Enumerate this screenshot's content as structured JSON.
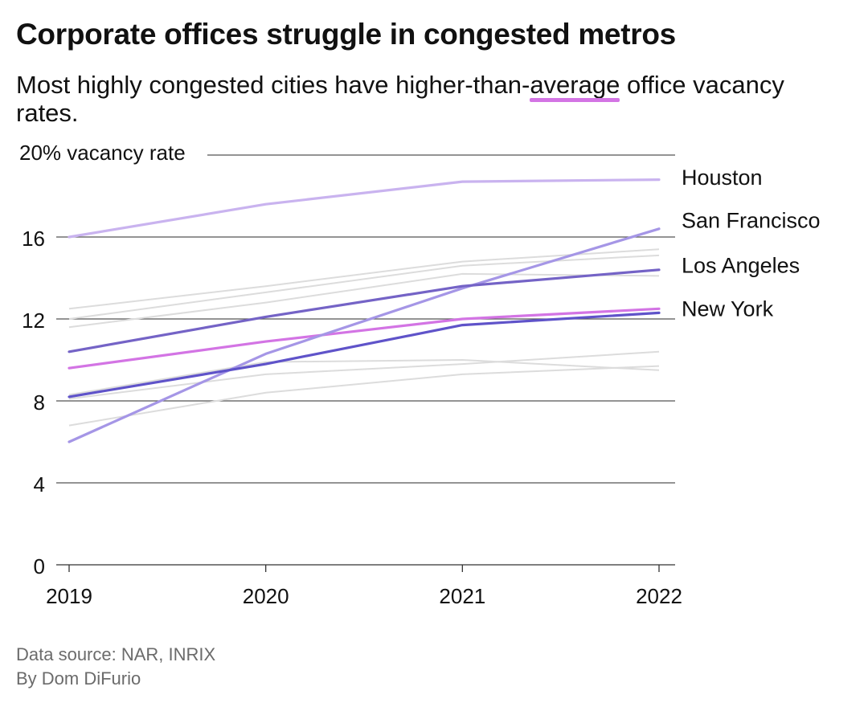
{
  "chart_data": {
    "type": "line",
    "title": "Corporate offices struggle in congested metros",
    "subtitle_before": "Most highly congested cities have higher-than-",
    "subtitle_highlight": "average",
    "subtitle_after": " office vacancy rates.",
    "ylabel": "20% vacancy rate",
    "x": [
      "2019",
      "2020",
      "2021",
      "2022"
    ],
    "y_ticks": [
      0,
      4,
      8,
      12,
      16
    ],
    "ylim": [
      0,
      20
    ],
    "grid": true,
    "series": [
      {
        "name": "Houston",
        "values": [
          16.0,
          17.6,
          18.7,
          18.8
        ],
        "color": "#c9b3ef"
      },
      {
        "name": "San Francisco",
        "values": [
          6.0,
          10.3,
          13.5,
          16.4
        ],
        "color": "#a596e6"
      },
      {
        "name": "Los Angeles",
        "values": [
          10.4,
          12.1,
          13.6,
          14.4
        ],
        "color": "#7463c6"
      },
      {
        "name": "New York",
        "values": [
          8.2,
          9.8,
          11.7,
          12.3
        ],
        "color": "#5f53c9"
      },
      {
        "name": "",
        "values": [
          9.6,
          10.9,
          12.0,
          12.5
        ],
        "color": "#d374e4"
      }
    ],
    "background_series": [
      {
        "values": [
          12.5,
          13.6,
          14.8,
          15.4
        ]
      },
      {
        "values": [
          12.0,
          13.3,
          14.6,
          15.1
        ]
      },
      {
        "values": [
          11.6,
          12.8,
          14.2,
          14.1
        ]
      },
      {
        "values": [
          8.3,
          9.9,
          10.0,
          9.5
        ]
      },
      {
        "values": [
          8.1,
          9.3,
          9.8,
          10.4
        ]
      },
      {
        "values": [
          6.8,
          8.4,
          9.3,
          9.7
        ]
      }
    ],
    "background_color": "#dcdcdc",
    "label_map": [
      {
        "name": "Houston",
        "y": 18.9
      },
      {
        "name": "San Francisco",
        "y": 16.8
      },
      {
        "name": "Los Angeles",
        "y": 14.6
      },
      {
        "name": "New York",
        "y": 12.5
      }
    ],
    "highlight_color": "#d374e4"
  },
  "footer": {
    "source": "Data source: NAR, INRIX",
    "byline": "By Dom DiFurio"
  }
}
